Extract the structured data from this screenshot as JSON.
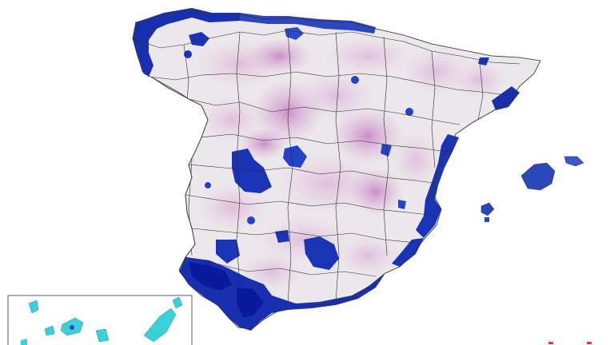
{
  "map": {
    "title": "",
    "regions": [
      {
        "name": "peninsula",
        "fill": "#ece6ea"
      },
      {
        "name": "balearic-islands",
        "fill": "#2a48b8"
      },
      {
        "name": "canary-islands-inset",
        "fill": "#3bd0d8"
      }
    ],
    "colors": {
      "background": "#ffffff",
      "land_light": "#ece6ea",
      "pale_purple": "#d9a9d3",
      "purple": "#c788c7",
      "blue": "#2c4bd0",
      "dark_blue": "#0a1a9a",
      "inset_cyan": "#3bd0d8",
      "boundary": "#2a2a2a"
    },
    "legend_present": false
  }
}
